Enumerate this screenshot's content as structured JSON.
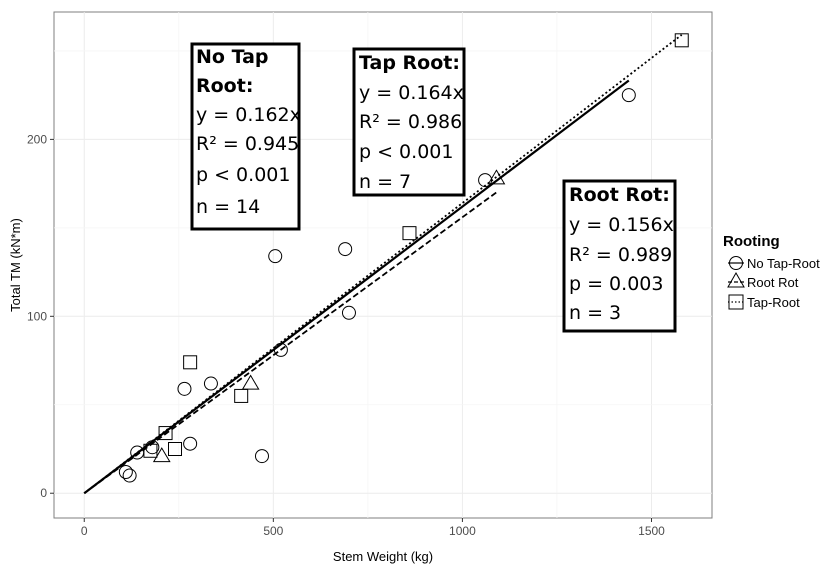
{
  "chart_data": {
    "type": "scatter",
    "xlabel": "Stem Weight (kg)",
    "ylabel": "Total TM (kN*m)",
    "xlim": [
      -80,
      1660
    ],
    "ylim": [
      -14,
      272
    ],
    "xticks": [
      "0",
      "500",
      "1000",
      "1500"
    ],
    "yticks": [
      "0",
      "100",
      "200"
    ],
    "grid": true,
    "legend": {
      "title": "Rooting",
      "position": "right"
    },
    "series": [
      {
        "name": "No Tap-Root",
        "marker": "circle",
        "line": "solid",
        "slope": 0.162,
        "points": [
          [
            110,
            12
          ],
          [
            120,
            10
          ],
          [
            140,
            23
          ],
          [
            180,
            26
          ],
          [
            265,
            59
          ],
          [
            280,
            28
          ],
          [
            335,
            62
          ],
          [
            470,
            21
          ],
          [
            505,
            134
          ],
          [
            520,
            81
          ],
          [
            690,
            138
          ],
          [
            700,
            102
          ],
          [
            1060,
            177
          ],
          [
            1440,
            225
          ]
        ]
      },
      {
        "name": "Root Rot",
        "marker": "triangle",
        "line": "dashed",
        "slope": 0.156,
        "points": [
          [
            205,
            21
          ],
          [
            440,
            62
          ],
          [
            1090,
            178
          ]
        ]
      },
      {
        "name": "Tap-Root",
        "marker": "square",
        "line": "dotted",
        "slope": 0.164,
        "points": [
          [
            175,
            24
          ],
          [
            215,
            34
          ],
          [
            240,
            25
          ],
          [
            280,
            74
          ],
          [
            415,
            55
          ],
          [
            860,
            147
          ],
          [
            1580,
            256
          ]
        ]
      }
    ],
    "annotations": [
      {
        "title_lines": [
          "No Tap",
          "Root:"
        ],
        "lines": [
          "y = 0.162x",
          "R² = 0.945",
          "p < 0.001",
          "n = 14"
        ]
      },
      {
        "title_lines": [
          "Tap Root:"
        ],
        "lines": [
          "y = 0.164x",
          "R² = 0.986",
          "p < 0.001",
          "n = 7"
        ]
      },
      {
        "title_lines": [
          "Root Rot:"
        ],
        "lines": [
          "y = 0.156x",
          "R² = 0.989",
          "p = 0.003",
          "n = 3"
        ]
      }
    ]
  }
}
